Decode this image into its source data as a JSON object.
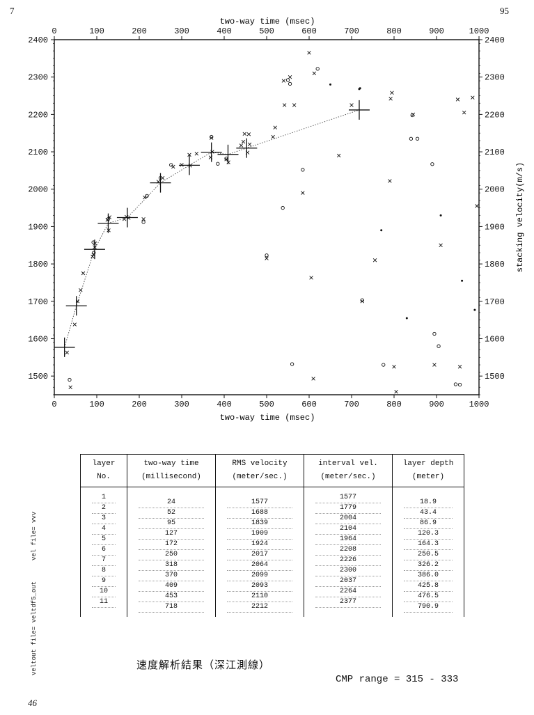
{
  "page": {
    "number_left": "7",
    "number_right": "95",
    "bottom_mark": "46"
  },
  "side_labels": {
    "vel_file": "vel file= vvv",
    "veltout_file": "veltout file= veltdf5_out"
  },
  "chart_data": {
    "type": "scatter",
    "title": "",
    "xlabel": "two-way time (msec)",
    "ylabel": "stacking velocity(m/s)",
    "xlim": [
      0,
      1000
    ],
    "ylim": [
      1450,
      2400
    ],
    "xticks": [
      0,
      100,
      200,
      300,
      400,
      500,
      600,
      700,
      800,
      900,
      1000
    ],
    "yticks": [
      1500,
      1600,
      1700,
      1800,
      1900,
      2000,
      2100,
      2200,
      2300,
      2400
    ],
    "grid": false,
    "colors": {
      "ink": "#111111",
      "trend": "#555555"
    },
    "picks": [
      {
        "x": 24,
        "y": 1577
      },
      {
        "x": 52,
        "y": 1688
      },
      {
        "x": 95,
        "y": 1839
      },
      {
        "x": 127,
        "y": 1909
      },
      {
        "x": 172,
        "y": 1924
      },
      {
        "x": 250,
        "y": 2017
      },
      {
        "x": 318,
        "y": 2064
      },
      {
        "x": 370,
        "y": 2099
      },
      {
        "x": 409,
        "y": 2093
      },
      {
        "x": 453,
        "y": 2110
      },
      {
        "x": 718,
        "y": 2212
      }
    ],
    "x_marks": [
      {
        "x": 30,
        "y": 1563
      },
      {
        "x": 38,
        "y": 1470
      },
      {
        "x": 48,
        "y": 1638
      },
      {
        "x": 55,
        "y": 1700
      },
      {
        "x": 62,
        "y": 1730
      },
      {
        "x": 68,
        "y": 1775
      },
      {
        "x": 90,
        "y": 1820
      },
      {
        "x": 92,
        "y": 1825
      },
      {
        "x": 95,
        "y": 1845
      },
      {
        "x": 96,
        "y": 1855
      },
      {
        "x": 125,
        "y": 1918
      },
      {
        "x": 128,
        "y": 1890
      },
      {
        "x": 130,
        "y": 1925
      },
      {
        "x": 165,
        "y": 1920
      },
      {
        "x": 170,
        "y": 1926
      },
      {
        "x": 175,
        "y": 1923
      },
      {
        "x": 210,
        "y": 1920
      },
      {
        "x": 213,
        "y": 1978
      },
      {
        "x": 245,
        "y": 2020
      },
      {
        "x": 255,
        "y": 2030
      },
      {
        "x": 280,
        "y": 2060
      },
      {
        "x": 300,
        "y": 2065
      },
      {
        "x": 318,
        "y": 2092
      },
      {
        "x": 320,
        "y": 2063
      },
      {
        "x": 335,
        "y": 2095
      },
      {
        "x": 368,
        "y": 2085
      },
      {
        "x": 370,
        "y": 2137
      },
      {
        "x": 372,
        "y": 2100
      },
      {
        "x": 405,
        "y": 2080
      },
      {
        "x": 410,
        "y": 2072
      },
      {
        "x": 440,
        "y": 2117
      },
      {
        "x": 445,
        "y": 2127
      },
      {
        "x": 448,
        "y": 2148
      },
      {
        "x": 455,
        "y": 2098
      },
      {
        "x": 458,
        "y": 2147
      },
      {
        "x": 460,
        "y": 2120
      },
      {
        "x": 500,
        "y": 1815
      },
      {
        "x": 515,
        "y": 2140
      },
      {
        "x": 520,
        "y": 2165
      },
      {
        "x": 540,
        "y": 2290
      },
      {
        "x": 542,
        "y": 2225
      },
      {
        "x": 555,
        "y": 2300
      },
      {
        "x": 565,
        "y": 2225
      },
      {
        "x": 585,
        "y": 1990
      },
      {
        "x": 600,
        "y": 2365
      },
      {
        "x": 605,
        "y": 1763
      },
      {
        "x": 610,
        "y": 1493
      },
      {
        "x": 612,
        "y": 2310
      },
      {
        "x": 670,
        "y": 2090
      },
      {
        "x": 700,
        "y": 2225
      },
      {
        "x": 725,
        "y": 1700
      },
      {
        "x": 755,
        "y": 1810
      },
      {
        "x": 790,
        "y": 2022
      },
      {
        "x": 792,
        "y": 2242
      },
      {
        "x": 795,
        "y": 2258
      },
      {
        "x": 800,
        "y": 1525
      },
      {
        "x": 805,
        "y": 1458
      },
      {
        "x": 845,
        "y": 2200
      },
      {
        "x": 895,
        "y": 1530
      },
      {
        "x": 910,
        "y": 1850
      },
      {
        "x": 950,
        "y": 2240
      },
      {
        "x": 955,
        "y": 1525
      },
      {
        "x": 965,
        "y": 2205
      },
      {
        "x": 985,
        "y": 2245
      },
      {
        "x": 995,
        "y": 1955
      }
    ],
    "o_marks": [
      {
        "x": 36,
        "y": 1490
      },
      {
        "x": 92,
        "y": 1858
      },
      {
        "x": 93,
        "y": 1830
      },
      {
        "x": 127,
        "y": 1920
      },
      {
        "x": 210,
        "y": 1912
      },
      {
        "x": 218,
        "y": 1982
      },
      {
        "x": 250,
        "y": 2030
      },
      {
        "x": 275,
        "y": 2065
      },
      {
        "x": 370,
        "y": 2140
      },
      {
        "x": 385,
        "y": 2068
      },
      {
        "x": 405,
        "y": 2082
      },
      {
        "x": 500,
        "y": 1823
      },
      {
        "x": 538,
        "y": 1950
      },
      {
        "x": 550,
        "y": 2292
      },
      {
        "x": 555,
        "y": 2282
      },
      {
        "x": 560,
        "y": 1532
      },
      {
        "x": 585,
        "y": 2052
      },
      {
        "x": 620,
        "y": 2322
      },
      {
        "x": 725,
        "y": 1703
      },
      {
        "x": 775,
        "y": 1530
      },
      {
        "x": 840,
        "y": 2135
      },
      {
        "x": 843,
        "y": 2198
      },
      {
        "x": 855,
        "y": 2135
      },
      {
        "x": 890,
        "y": 2067
      },
      {
        "x": 895,
        "y": 1613
      },
      {
        "x": 905,
        "y": 1580
      },
      {
        "x": 945,
        "y": 1478
      },
      {
        "x": 955,
        "y": 1477
      }
    ],
    "dots": [
      {
        "x": 720,
        "y": 2270
      },
      {
        "x": 718,
        "y": 2268
      },
      {
        "x": 770,
        "y": 1890
      },
      {
        "x": 830,
        "y": 1655
      },
      {
        "x": 910,
        "y": 1930
      },
      {
        "x": 960,
        "y": 1755
      },
      {
        "x": 990,
        "y": 1677
      },
      {
        "x": 650,
        "y": 2280
      }
    ]
  },
  "table": {
    "headers": [
      [
        "layer",
        "No."
      ],
      [
        "two-way time",
        "(millisecond)"
      ],
      [
        "RMS velocity",
        "(meter/sec.)"
      ],
      [
        "interval vel.",
        "(meter/sec.)"
      ],
      [
        "layer depth",
        "(meter)"
      ]
    ],
    "layer_no": [
      "1",
      "2",
      "3",
      "4",
      "5",
      "6",
      "7",
      "8",
      "9",
      "10",
      "11"
    ],
    "two_way_time": [
      "24",
      "52",
      "95",
      "127",
      "172",
      "250",
      "318",
      "370",
      "409",
      "453",
      "718"
    ],
    "rms_velocity": [
      "1577",
      "1688",
      "1839",
      "1909",
      "1924",
      "2017",
      "2064",
      "2099",
      "2093",
      "2110",
      "2212"
    ],
    "interval_vel": [
      "1577",
      "1779",
      "2004",
      "2104",
      "1964",
      "2208",
      "2226",
      "2300",
      "2037",
      "2264",
      "2377"
    ],
    "layer_depth": [
      "18.9",
      "43.4",
      "86.9",
      "120.3",
      "164.3",
      "250.5",
      "326.2",
      "386.0",
      "425.8",
      "476.5",
      "790.9"
    ]
  },
  "caption": {
    "title": "速度解析結果（深江測線）",
    "cmp_range": "CMP range = 315 - 333"
  }
}
